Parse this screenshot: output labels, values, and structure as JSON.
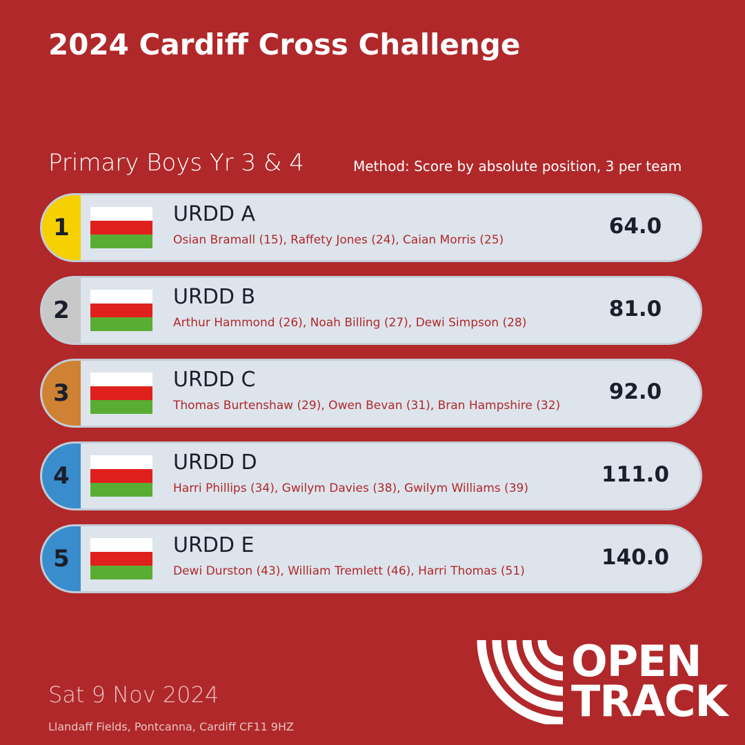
{
  "title": "2024 Cardiff Cross Challenge",
  "subtitle": "Primary Boys Yr 3 & 4",
  "method": "Method: Score by absolute position, 3 per team",
  "rows": [
    {
      "rank": 1,
      "team": "URDD A",
      "members": "Osian Bramall (15), Raffety Jones (24), Caian Morris (25)",
      "score": "64.0"
    },
    {
      "rank": 2,
      "team": "URDD B",
      "members": "Arthur Hammond (26), Noah Billing (27), Dewi Simpson (28)",
      "score": "81.0"
    },
    {
      "rank": 3,
      "team": "URDD C",
      "members": "Thomas Burtenshaw (29), Owen Bevan (31), Bran Hampshire (32)",
      "score": "92.0"
    },
    {
      "rank": 4,
      "team": "URDD D",
      "members": "Harri Phillips (34), Gwilym Davies (38), Gwilym Williams (39)",
      "score": "111.0"
    },
    {
      "rank": 5,
      "team": "URDD E",
      "members": "Dewi Durston (43), William Tremlett (46), Harri Thomas (51)",
      "score": "140.0"
    }
  ],
  "date": "Sat 9 Nov 2024",
  "venue": "Llandaff Fields, Pontcanna, Cardiff CF11 9HZ",
  "logo": [
    "OPEN",
    "TRACK"
  ]
}
